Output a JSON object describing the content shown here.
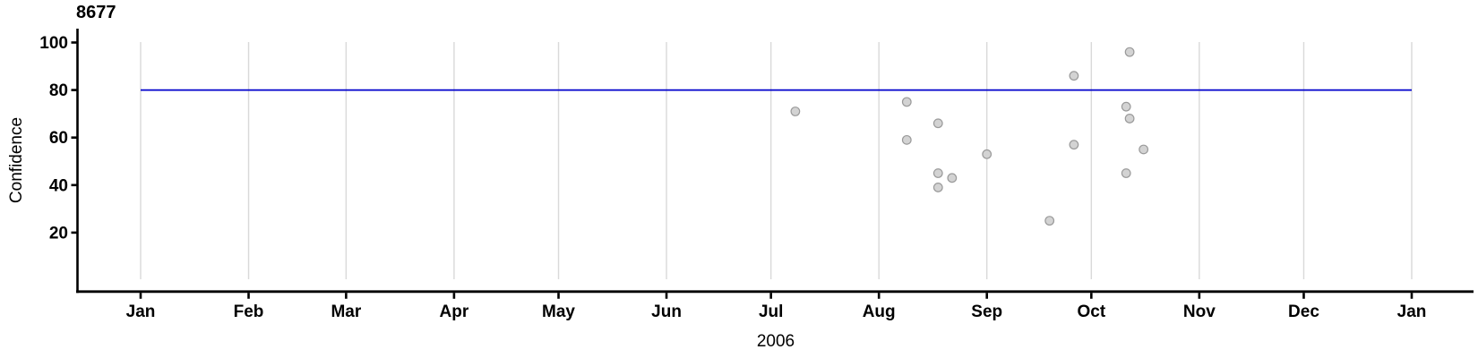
{
  "chart_data": {
    "type": "scatter",
    "title": "8677",
    "ylabel": "Confidence",
    "xlabel": "2006",
    "x_axis": {
      "tick_labels": [
        "Jan",
        "Feb",
        "Mar",
        "Apr",
        "May",
        "Jun",
        "Jul",
        "Aug",
        "Sep",
        "Oct",
        "Nov",
        "Dec",
        "Jan"
      ],
      "range": "Jan 2006 to Jan 2007",
      "grid": true
    },
    "y_axis": {
      "tick_labels": [
        "20",
        "40",
        "60",
        "80",
        "100"
      ],
      "ticks": [
        20,
        40,
        60,
        80,
        100
      ],
      "range": [
        -5,
        105
      ]
    },
    "reference_line": {
      "y": 80,
      "color": "#0000cc"
    },
    "points": [
      {
        "date": "2006-07-08",
        "confidence": 71
      },
      {
        "date": "2006-08-09",
        "confidence": 75
      },
      {
        "date": "2006-08-09",
        "confidence": 59
      },
      {
        "date": "2006-08-18",
        "confidence": 66
      },
      {
        "date": "2006-08-18",
        "confidence": 45
      },
      {
        "date": "2006-08-18",
        "confidence": 39
      },
      {
        "date": "2006-08-22",
        "confidence": 43
      },
      {
        "date": "2006-09-01",
        "confidence": 53
      },
      {
        "date": "2006-09-19",
        "confidence": 25
      },
      {
        "date": "2006-09-26",
        "confidence": 86
      },
      {
        "date": "2006-09-26",
        "confidence": 57
      },
      {
        "date": "2006-10-11",
        "confidence": 73
      },
      {
        "date": "2006-10-11",
        "confidence": 45
      },
      {
        "date": "2006-10-12",
        "confidence": 96
      },
      {
        "date": "2006-10-12",
        "confidence": 68
      },
      {
        "date": "2006-10-16",
        "confidence": 55
      }
    ],
    "colors": {
      "point_fill": "#d3d3d3",
      "point_stroke": "#9a9a9a",
      "grid": "#d9d9d9",
      "axis": "#000000",
      "reference_line": "#0000cc",
      "text": "#000000"
    }
  }
}
